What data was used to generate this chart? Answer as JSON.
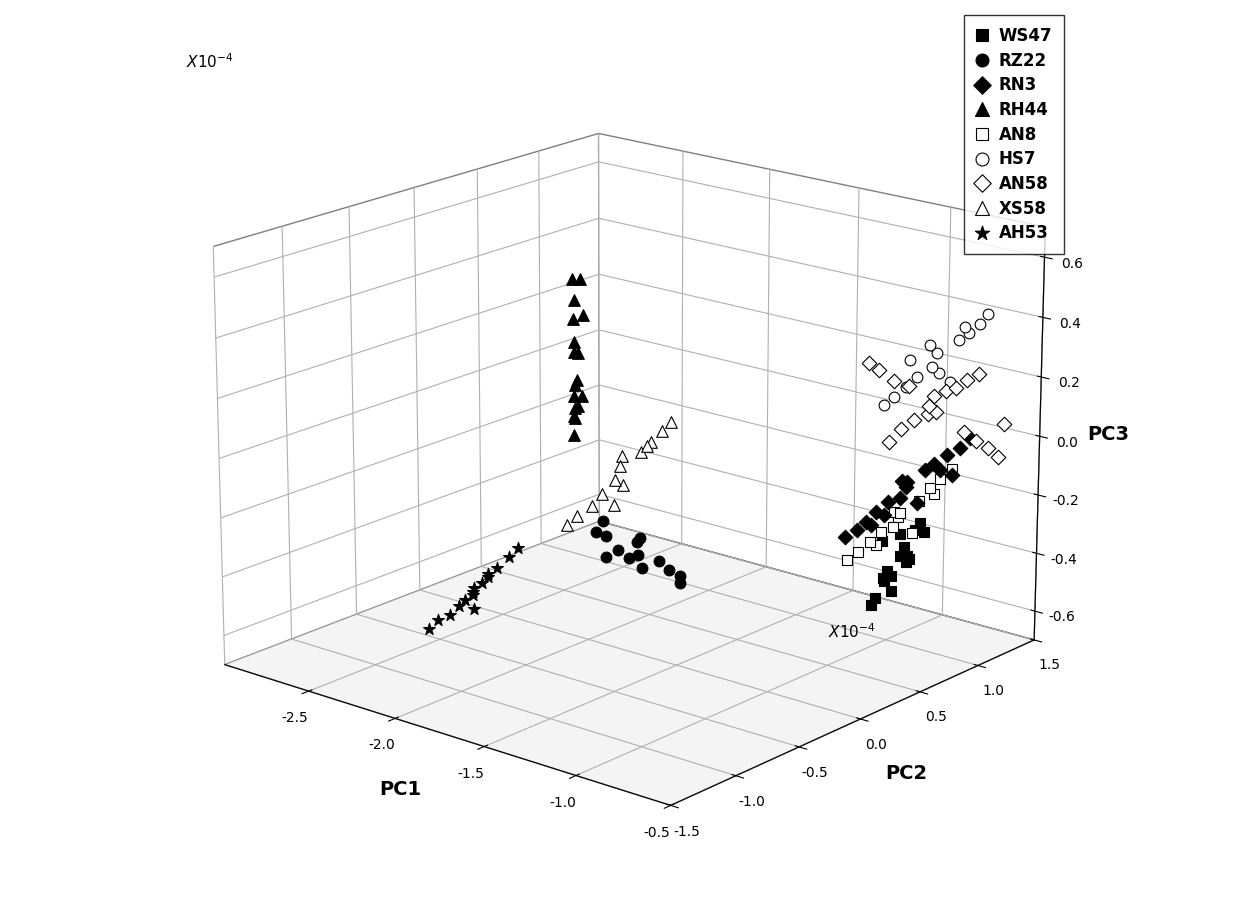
{
  "xlabel": "PC1",
  "ylabel": "PC2",
  "zlabel": "PC3",
  "scale": 0.0001,
  "xlim": [
    -3.0,
    -0.5
  ],
  "ylim": [
    -1.5,
    1.5
  ],
  "zlim": [
    -0.7,
    0.7
  ],
  "xticks": [
    -2.5,
    -2.0,
    -1.5,
    -1.0,
    -0.5
  ],
  "yticks": [
    -1.5,
    -1.0,
    -0.5,
    0.0,
    0.5,
    1.0,
    1.5
  ],
  "zticks": [
    -0.6,
    -0.4,
    -0.2,
    0.0,
    0.2,
    0.4,
    0.6
  ],
  "elev": 18,
  "azim": -50,
  "groups": {
    "WS47": {
      "marker": "s",
      "filled": true,
      "size": 55,
      "pc1": [
        -0.8,
        -0.82,
        -0.85,
        -0.88,
        -0.9,
        -0.83,
        -0.86,
        -0.79,
        -0.87,
        -0.84,
        -0.91,
        -0.78,
        -0.89,
        -0.93,
        -0.81,
        -0.77,
        -0.94
      ],
      "pc2": [
        0.85,
        0.88,
        0.8,
        0.92,
        0.82,
        0.87,
        0.78,
        0.9,
        0.83,
        0.86,
        0.76,
        0.93,
        0.79,
        0.84,
        0.89,
        0.95,
        0.77
      ],
      "pc3": [
        -0.35,
        -0.38,
        -0.42,
        -0.3,
        -0.45,
        -0.33,
        -0.4,
        -0.27,
        -0.48,
        -0.36,
        -0.5,
        -0.25,
        -0.43,
        -0.32,
        -0.37,
        -0.28,
        -0.53
      ]
    },
    "RZ22": {
      "marker": "o",
      "filled": true,
      "size": 60,
      "pc1": [
        -1.48,
        -1.52,
        -1.55,
        -1.45,
        -1.58,
        -1.42,
        -1.6,
        -1.38,
        -1.5,
        -1.53,
        -1.47,
        -1.62,
        -1.4,
        -1.56
      ],
      "pc2": [
        -0.35,
        -0.28,
        -0.4,
        -0.22,
        -0.45,
        -0.18,
        -0.5,
        -0.15,
        -0.38,
        -0.25,
        -0.32,
        -0.42,
        -0.12,
        -0.48
      ],
      "pc3": [
        -0.22,
        -0.28,
        -0.25,
        -0.3,
        -0.2,
        -0.33,
        -0.18,
        -0.35,
        -0.27,
        -0.23,
        -0.31,
        -0.16,
        -0.38,
        -0.26
      ]
    },
    "RN3": {
      "marker": "D",
      "filled": true,
      "size": 55,
      "pc1": [
        -0.68,
        -0.72,
        -0.75,
        -0.65,
        -0.78,
        -0.62,
        -0.8,
        -0.58,
        -0.7,
        -0.73,
        -0.67,
        -0.55,
        -0.82,
        -0.6,
        -0.76,
        -0.52,
        -0.85,
        -0.57,
        -0.79
      ],
      "pc2": [
        0.65,
        0.7,
        0.6,
        0.75,
        0.55,
        0.78,
        0.5,
        0.82,
        0.62,
        0.68,
        0.72,
        0.88,
        0.45,
        0.8,
        0.58,
        0.92,
        0.4,
        0.85,
        0.52
      ],
      "pc3": [
        -0.05,
        -0.08,
        -0.12,
        -0.02,
        -0.15,
        0.0,
        -0.18,
        0.03,
        -0.1,
        -0.06,
        -0.13,
        0.05,
        -0.2,
        -0.02,
        -0.16,
        0.08,
        -0.22,
        -0.04,
        -0.19
      ]
    },
    "RH44": {
      "marker": "^",
      "filled": true,
      "size": 70,
      "pc1": [
        -1.78,
        -1.8,
        -1.75,
        -1.82,
        -1.72,
        -1.85,
        -1.68,
        -1.88,
        -1.74,
        -1.76,
        -1.83,
        -1.65,
        -1.9,
        -1.7,
        -1.86,
        -1.62,
        -1.92
      ],
      "pc2": [
        -0.42,
        -0.38,
        -0.45,
        -0.35,
        -0.48,
        -0.32,
        -0.52,
        -0.28,
        -0.4,
        -0.44,
        -0.36,
        -0.55,
        -0.25,
        -0.5,
        -0.3,
        -0.58,
        -0.22
      ],
      "pc3": [
        0.1,
        0.15,
        0.2,
        0.25,
        0.3,
        0.35,
        0.4,
        0.45,
        0.5,
        0.55,
        0.6,
        0.65,
        0.12,
        0.22,
        0.38,
        0.28,
        0.18
      ]
    },
    "AN8": {
      "marker": "s",
      "filled": false,
      "size": 55,
      "pc1": [
        -0.7,
        -0.74,
        -0.77,
        -0.66,
        -0.8,
        -0.63,
        -0.83,
        -0.6,
        -0.72,
        -0.75,
        -0.68,
        -0.57,
        -0.85,
        -0.62,
        -0.78
      ],
      "pc2": [
        0.62,
        0.67,
        0.58,
        0.72,
        0.53,
        0.76,
        0.48,
        0.8,
        0.6,
        0.65,
        0.7,
        0.85,
        0.42,
        0.78,
        0.55
      ],
      "pc3": [
        -0.15,
        -0.18,
        -0.22,
        -0.12,
        -0.25,
        -0.08,
        -0.28,
        -0.05,
        -0.2,
        -0.16,
        -0.23,
        -0.02,
        -0.3,
        -0.1,
        -0.26
      ]
    },
    "HS7": {
      "marker": "o",
      "filled": false,
      "size": 60,
      "pc1": [
        -0.62,
        -0.66,
        -0.7,
        -0.58,
        -0.73,
        -0.55,
        -0.76,
        -0.52,
        -0.64,
        -0.68,
        -0.61,
        -0.5,
        -0.78,
        -0.56,
        -0.72
      ],
      "pc2": [
        0.8,
        0.85,
        0.75,
        0.9,
        0.7,
        0.94,
        0.65,
        0.98,
        0.78,
        0.82,
        0.88,
        1.02,
        0.6,
        0.92,
        0.72
      ],
      "pc3": [
        0.3,
        0.35,
        0.28,
        0.4,
        0.25,
        0.42,
        0.22,
        0.45,
        0.32,
        0.38,
        0.26,
        0.48,
        0.2,
        0.44,
        0.34
      ]
    },
    "AN58": {
      "marker": "D",
      "filled": false,
      "size": 55,
      "pc1": [
        -0.6,
        -0.64,
        -0.68,
        -0.56,
        -0.72,
        -0.52,
        -0.75,
        -0.48,
        -0.62,
        -0.66,
        -0.59,
        -0.45,
        -0.78,
        -0.54,
        -0.7,
        -0.42,
        -0.8,
        -0.5,
        -0.74,
        -0.38
      ],
      "pc2": [
        0.75,
        0.8,
        0.7,
        0.85,
        0.65,
        0.88,
        0.6,
        0.92,
        0.72,
        0.78,
        0.82,
        0.96,
        0.55,
        0.9,
        0.68,
        1.0,
        0.5,
        0.94,
        0.62,
        0.98
      ],
      "pc3": [
        0.18,
        0.22,
        0.15,
        0.25,
        0.12,
        0.28,
        0.08,
        0.3,
        0.2,
        0.16,
        0.24,
        0.05,
        0.32,
        0.1,
        0.26,
        0.02,
        0.35,
        0.07,
        0.28,
        0.14
      ]
    },
    "XS58": {
      "marker": "^",
      "filled": false,
      "size": 70,
      "pc1": [
        -1.58,
        -1.62,
        -1.65,
        -1.55,
        -1.68,
        -1.52,
        -1.72,
        -1.48,
        -1.6,
        -1.63,
        -1.57,
        -1.45,
        -1.75,
        -1.53
      ],
      "pc2": [
        -0.32,
        -0.28,
        -0.38,
        -0.22,
        -0.42,
        -0.18,
        -0.48,
        -0.15,
        -0.35,
        -0.25,
        -0.4,
        -0.12,
        -0.52,
        -0.2
      ],
      "pc3": [
        -0.05,
        0.0,
        -0.08,
        0.05,
        -0.12,
        0.08,
        -0.15,
        0.12,
        -0.03,
        0.03,
        -0.1,
        0.15,
        -0.18,
        0.07
      ]
    },
    "AH53": {
      "marker": "*",
      "filled": true,
      "size": 80,
      "pc1": [
        -2.28,
        -2.32,
        -2.35,
        -2.25,
        -2.38,
        -2.22,
        -2.42,
        -2.18,
        -2.3,
        -2.33,
        -2.27,
        -2.15,
        -2.45,
        -2.25,
        -2.3
      ],
      "pc2": [
        -0.52,
        -0.48,
        -0.55,
        -0.45,
        -0.58,
        -0.42,
        -0.62,
        -0.38,
        -0.5,
        -0.53,
        -0.47,
        -0.35,
        -0.65,
        -0.45,
        -0.5
      ],
      "pc3": [
        -0.48,
        -0.52,
        -0.55,
        -0.45,
        -0.58,
        -0.42,
        -0.6,
        -0.38,
        -0.5,
        -0.53,
        -0.47,
        -0.35,
        -0.63,
        -0.44,
        -0.56
      ]
    }
  }
}
